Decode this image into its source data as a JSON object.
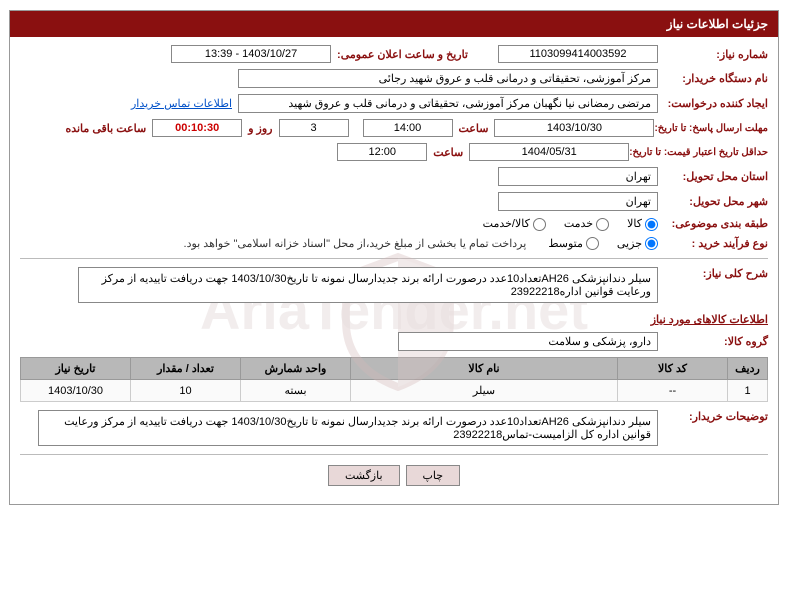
{
  "header": {
    "title": "جزئیات اطلاعات نیاز"
  },
  "fields": {
    "need_no_label": "شماره نیاز:",
    "need_no": "1103099414003592",
    "announce_label": "تاریخ و ساعت اعلان عمومی:",
    "announce": "1403/10/27 - 13:39",
    "buyer_org_label": "نام دستگاه خریدار:",
    "buyer_org": "مرکز آموزشی، تحقیقاتی و درمانی قلب و عروق شهید رجائی",
    "requester_label": "ایجاد کننده درخواست:",
    "requester": "مرتضی رمضانی نیا نگهبان مرکز آموزشی، تحقیقاتی و درمانی قلب و عروق شهید",
    "contact_link": "اطلاعات تماس خریدار",
    "deadline_label": "مهلت ارسال پاسخ: تا تاریخ:",
    "deadline_date": "1403/10/30",
    "time_label": "ساعت",
    "deadline_time": "14:00",
    "days": "3",
    "days_and": "روز و",
    "countdown": "00:10:30",
    "remaining": "ساعت باقی مانده",
    "validity_label": "حداقل تاریخ اعتبار قیمت: تا تاریخ:",
    "validity_date": "1404/05/31",
    "validity_time": "12:00",
    "province_label": "استان محل تحویل:",
    "province": "تهران",
    "city_label": "شهر محل تحویل:",
    "city": "تهران",
    "category_label": "طبقه بندی موضوعی:",
    "cat_goods": "کالا",
    "cat_service": "خدمت",
    "cat_both": "کالا/خدمت",
    "process_label": "نوع فرآیند خرید :",
    "proc_partial": "جزیی",
    "proc_medium": "متوسط",
    "process_note": "پرداخت تمام یا بخشی از مبلغ خرید،از محل \"اسناد خزانه اسلامی\" خواهد بود.",
    "general_label": "شرح کلی نیاز:",
    "general_desc": "سیلر دندانپزشکی AH26تعداد10عدد درصورت ارائه برند جدیدارسال نمونه تا تاریخ1403/10/30 جهت دریافت تاییدیه از مرکز ورعایت قوانین اداره23922218",
    "section_title": "اطلاعات کالاهای مورد نیاز",
    "group_label": "گروه کالا:",
    "group": "دارو، پزشکی و سلامت",
    "buyer_notes_label": "توضیحات خریدار:",
    "buyer_notes": "سیلر دندانپزشکی AH26تعداد10عدد درصورت ارائه برند جدیدارسال نمونه تا تاریخ1403/10/30 جهت دریافت تاییدیه از مرکز ورعایت قوانین اداره کل الزامیست-تماس23922218"
  },
  "table": {
    "headers": {
      "row": "ردیف",
      "code": "کد کالا",
      "name": "نام کالا",
      "unit": "واحد شمارش",
      "qty": "تعداد / مقدار",
      "date": "تاریخ نیاز"
    },
    "rows": [
      {
        "row": "1",
        "code": "--",
        "name": "سیلر",
        "unit": "بسته",
        "qty": "10",
        "date": "1403/10/30"
      }
    ]
  },
  "buttons": {
    "print": "چاپ",
    "back": "بازگشت"
  },
  "watermark": "AriaTender.net"
}
